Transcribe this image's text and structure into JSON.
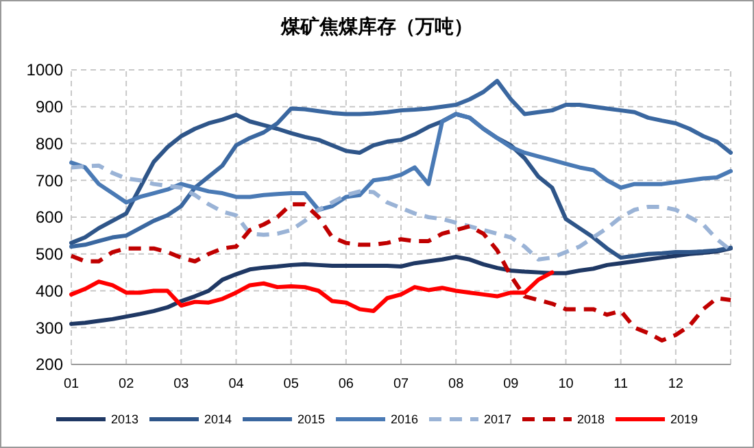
{
  "chart_data": {
    "type": "line",
    "title": "煤矿焦煤库存（万吨）",
    "x": [
      1,
      1.25,
      1.5,
      1.75,
      2,
      2.25,
      2.5,
      2.75,
      3,
      3.25,
      3.5,
      3.75,
      4,
      4.25,
      4.5,
      4.75,
      5,
      5.25,
      5.5,
      5.75,
      6,
      6.25,
      6.5,
      6.75,
      7,
      7.25,
      7.5,
      7.75,
      8,
      8.25,
      8.5,
      8.75,
      9,
      9.25,
      9.5,
      9.75,
      10,
      10.25,
      10.5,
      10.75,
      11,
      11.25,
      11.5,
      11.75,
      12,
      12.25,
      12.5,
      12.75,
      13
    ],
    "xlim": [
      1,
      13
    ],
    "xticks": [
      {
        "value": 1,
        "label": "01"
      },
      {
        "value": 2,
        "label": "02"
      },
      {
        "value": 3,
        "label": "03"
      },
      {
        "value": 4,
        "label": "04"
      },
      {
        "value": 5,
        "label": "05"
      },
      {
        "value": 6,
        "label": "06"
      },
      {
        "value": 7,
        "label": "07"
      },
      {
        "value": 8,
        "label": "08"
      },
      {
        "value": 9,
        "label": "09"
      },
      {
        "value": 10,
        "label": "10"
      },
      {
        "value": 11,
        "label": "11"
      },
      {
        "value": 12,
        "label": "12"
      }
    ],
    "ylim": [
      200,
      1000
    ],
    "yticks": [
      200,
      300,
      400,
      500,
      600,
      700,
      800,
      900,
      1000
    ],
    "grid": true,
    "legend": "bottom",
    "series": [
      {
        "name": "2013",
        "color": "#1f3864",
        "line_style": "solid",
        "values": [
          310,
          313,
          318,
          323,
          330,
          337,
          345,
          355,
          372,
          385,
          400,
          430,
          445,
          458,
          463,
          466,
          470,
          472,
          470,
          468,
          468,
          468,
          468,
          468,
          466,
          475,
          480,
          485,
          492,
          485,
          472,
          462,
          455,
          452,
          450,
          448,
          448,
          455,
          460,
          470,
          475,
          480,
          485,
          490,
          495,
          500,
          503,
          507,
          515
        ]
      },
      {
        "name": "2014",
        "color": "#2e5589",
        "line_style": "solid",
        "values": [
          530,
          545,
          570,
          590,
          610,
          680,
          750,
          790,
          820,
          840,
          855,
          865,
          878,
          860,
          850,
          840,
          828,
          818,
          810,
          795,
          780,
          775,
          795,
          805,
          810,
          825,
          845,
          860,
          880,
          870,
          840,
          815,
          795,
          760,
          710,
          680,
          595,
          570,
          545,
          515,
          490,
          495,
          500,
          502,
          505,
          505,
          507,
          510,
          517
        ]
      },
      {
        "name": "2015",
        "color": "#3a67a0",
        "line_style": "solid",
        "values": [
          520,
          525,
          535,
          545,
          550,
          570,
          590,
          605,
          630,
          680,
          710,
          740,
          795,
          815,
          830,
          855,
          895,
          893,
          888,
          883,
          880,
          880,
          882,
          885,
          890,
          892,
          895,
          900,
          905,
          920,
          940,
          970,
          920,
          880,
          885,
          890,
          905,
          905,
          900,
          895,
          890,
          885,
          870,
          862,
          855,
          840,
          820,
          805,
          775
        ]
      },
      {
        "name": "2016",
        "color": "#4a7ab5",
        "line_style": "solid",
        "values": [
          748,
          735,
          690,
          665,
          640,
          655,
          665,
          675,
          690,
          680,
          670,
          665,
          655,
          655,
          660,
          663,
          665,
          665,
          620,
          630,
          655,
          660,
          700,
          705,
          715,
          735,
          690,
          860,
          880,
          870,
          840,
          815,
          790,
          775,
          765,
          755,
          745,
          735,
          728,
          700,
          680,
          690,
          690,
          690,
          695,
          700,
          705,
          708,
          725
        ]
      },
      {
        "name": "2017",
        "color": "#9ab3d6",
        "line_style": "dashed",
        "values": [
          735,
          738,
          740,
          720,
          705,
          700,
          690,
          685,
          680,
          660,
          635,
          615,
          605,
          555,
          552,
          555,
          565,
          590,
          620,
          640,
          660,
          670,
          668,
          640,
          625,
          610,
          600,
          595,
          585,
          575,
          565,
          555,
          545,
          520,
          485,
          490,
          505,
          520,
          545,
          570,
          600,
          620,
          628,
          628,
          620,
          600,
          580,
          540,
          510
        ]
      },
      {
        "name": "2018",
        "color": "#c00000",
        "line_style": "dashed",
        "values": [
          495,
          480,
          480,
          505,
          515,
          515,
          515,
          505,
          490,
          480,
          500,
          515,
          520,
          565,
          580,
          600,
          635,
          635,
          600,
          545,
          530,
          525,
          525,
          530,
          540,
          535,
          535,
          555,
          565,
          575,
          555,
          510,
          440,
          385,
          375,
          365,
          350,
          350,
          350,
          335,
          345,
          300,
          285,
          265,
          280,
          305,
          350,
          380,
          375
        ]
      },
      {
        "name": "2019",
        "color": "#ff0000",
        "line_style": "solid",
        "values": [
          390,
          405,
          425,
          415,
          395,
          395,
          400,
          400,
          360,
          370,
          368,
          378,
          395,
          415,
          420,
          410,
          412,
          410,
          400,
          372,
          368,
          350,
          345,
          380,
          390,
          410,
          402,
          408,
          400,
          395,
          390,
          385,
          395,
          395,
          430,
          450,
          null,
          null,
          null,
          null,
          null,
          null,
          null,
          null,
          null,
          null,
          null,
          null,
          null
        ]
      }
    ]
  }
}
